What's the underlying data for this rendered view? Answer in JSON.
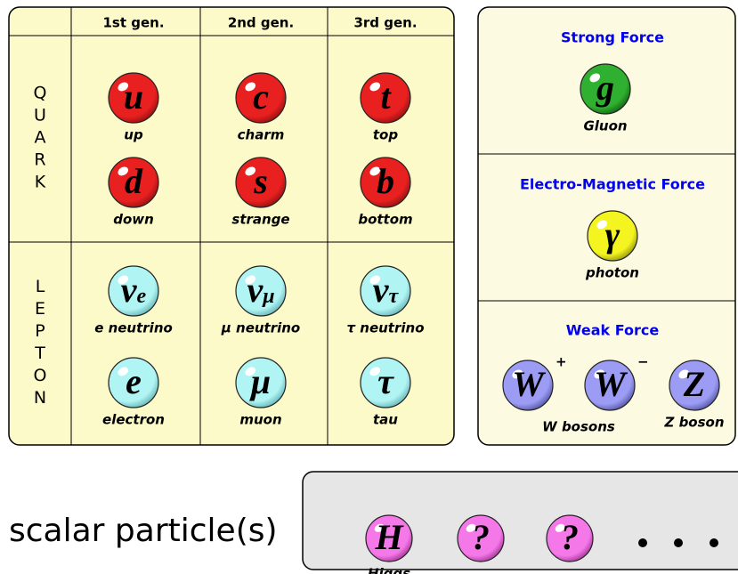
{
  "table": {
    "headers": [
      "1st gen.",
      "2nd gen.",
      "3rd gen."
    ],
    "groups": [
      {
        "label": "QUARK",
        "columns": [
          [
            {
              "symbol": "u",
              "name": "up"
            },
            {
              "symbol": "d",
              "name": "down"
            }
          ],
          [
            {
              "symbol": "c",
              "name": "charm"
            },
            {
              "symbol": "s",
              "name": "strange"
            }
          ],
          [
            {
              "symbol": "t",
              "name": "top"
            },
            {
              "symbol": "b",
              "name": "bottom"
            }
          ]
        ]
      },
      {
        "label": "LEPTON",
        "columns": [
          [
            {
              "symbol": "ν",
              "sub": "e",
              "name": "e neutrino"
            },
            {
              "symbol": "e",
              "name": "electron"
            }
          ],
          [
            {
              "symbol": "ν",
              "sub": "μ",
              "name": "μ neutrino"
            },
            {
              "symbol": "μ",
              "name": "muon"
            }
          ],
          [
            {
              "symbol": "ν",
              "sub": "τ",
              "name": "τ neutrino"
            },
            {
              "symbol": "τ",
              "name": "tau"
            }
          ]
        ]
      }
    ]
  },
  "forces": [
    {
      "title": "Strong Force",
      "particles": [
        {
          "symbol": "g",
          "name": "Gluon"
        }
      ]
    },
    {
      "title": "Electro-Magnetic Force",
      "particles": [
        {
          "symbol": "γ",
          "name": "photon"
        }
      ]
    },
    {
      "title": "Weak Force",
      "particles": [
        {
          "symbol": "W",
          "sup": "+"
        },
        {
          "symbol": "W",
          "sup": "−"
        },
        {
          "symbol": "Z",
          "name": "Z boson"
        }
      ],
      "shared_label": "W bosons"
    }
  ],
  "scalar": {
    "label": "scalar particle(s)",
    "particles": [
      {
        "symbol": "H",
        "name": "Higgs"
      },
      {
        "symbol": "?"
      },
      {
        "symbol": "?"
      }
    ]
  }
}
